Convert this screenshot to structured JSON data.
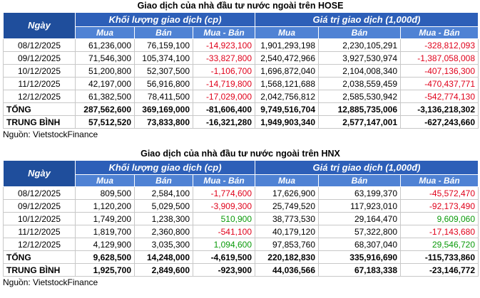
{
  "tables": [
    {
      "title": "Giao dịch của nhà đầu tư nước ngoài trên HOSE",
      "headers": {
        "date": "Ngày",
        "groups": [
          "Khối lượng giao dịch (cp)",
          "Giá trị giao dịch (1,000đ)"
        ],
        "columns": [
          "Mua",
          "Bán",
          "Mua - Bán",
          "Mua",
          "Bán",
          "Mua - Bán"
        ]
      },
      "rows": [
        [
          "08/12/2025",
          "61,236,000",
          "76,159,100",
          "-14,923,100",
          "1,901,293,198",
          "2,230,105,291",
          "-328,812,093"
        ],
        [
          "09/12/2025",
          "71,546,300",
          "105,374,100",
          "-33,827,800",
          "2,540,472,966",
          "3,927,530,974",
          "-1,387,058,008"
        ],
        [
          "10/12/2025",
          "51,200,800",
          "52,307,500",
          "-1,106,700",
          "1,696,872,040",
          "2,104,008,340",
          "-407,136,300"
        ],
        [
          "11/12/2025",
          "42,197,000",
          "56,916,800",
          "-14,719,800",
          "1,568,121,688",
          "2,038,559,459",
          "-470,437,771"
        ],
        [
          "12/12/2025",
          "61,382,500",
          "78,411,500",
          "-17,029,000",
          "2,042,756,812",
          "2,585,530,942",
          "-542,774,130"
        ]
      ],
      "total": [
        "TỔNG",
        "287,562,600",
        "369,169,000",
        "-81,606,400",
        "9,749,516,704",
        "12,885,735,006",
        "-3,136,218,302"
      ],
      "average": [
        "TRUNG BÌNH",
        "57,512,520",
        "73,833,800",
        "-16,321,280",
        "1,949,903,340",
        "2,577,147,001",
        "-627,243,660"
      ],
      "source": "Nguồn: VietstockFinance"
    },
    {
      "title": "Giao dịch của nhà đầu tư nước ngoài trên HNX",
      "headers": {
        "date": "Ngày",
        "groups": [
          "Khối lượng giao dịch (cp)",
          "Giá trị giao dịch (1,000đ)"
        ],
        "columns": [
          "Mua",
          "Bán",
          "Mua - Bán",
          "Mua",
          "Bán",
          "Mua - Bán"
        ]
      },
      "rows": [
        [
          "08/12/2025",
          "809,500",
          "2,584,100",
          "-1,774,600",
          "17,626,900",
          "63,199,370",
          "-45,572,470"
        ],
        [
          "09/12/2025",
          "1,120,200",
          "5,029,500",
          "-3,909,300",
          "25,749,520",
          "117,923,010",
          "-92,173,490"
        ],
        [
          "10/12/2025",
          "1,749,200",
          "1,238,300",
          "510,900",
          "38,773,530",
          "29,164,470",
          "9,609,060"
        ],
        [
          "11/12/2025",
          "1,819,700",
          "2,360,800",
          "-541,100",
          "40,179,120",
          "57,322,800",
          "-17,143,680"
        ],
        [
          "12/12/2025",
          "4,129,900",
          "3,035,300",
          "1,094,600",
          "97,853,760",
          "68,307,040",
          "29,546,720"
        ]
      ],
      "total": [
        "TỔNG",
        "9,628,500",
        "14,248,000",
        "-4,619,500",
        "220,182,830",
        "335,916,690",
        "-115,733,860"
      ],
      "average": [
        "TRUNG BÌNH",
        "1,925,700",
        "2,849,600",
        "-923,900",
        "44,036,566",
        "67,183,338",
        "-23,146,772"
      ],
      "source": "Nguồn: VietstockFinance"
    }
  ]
}
